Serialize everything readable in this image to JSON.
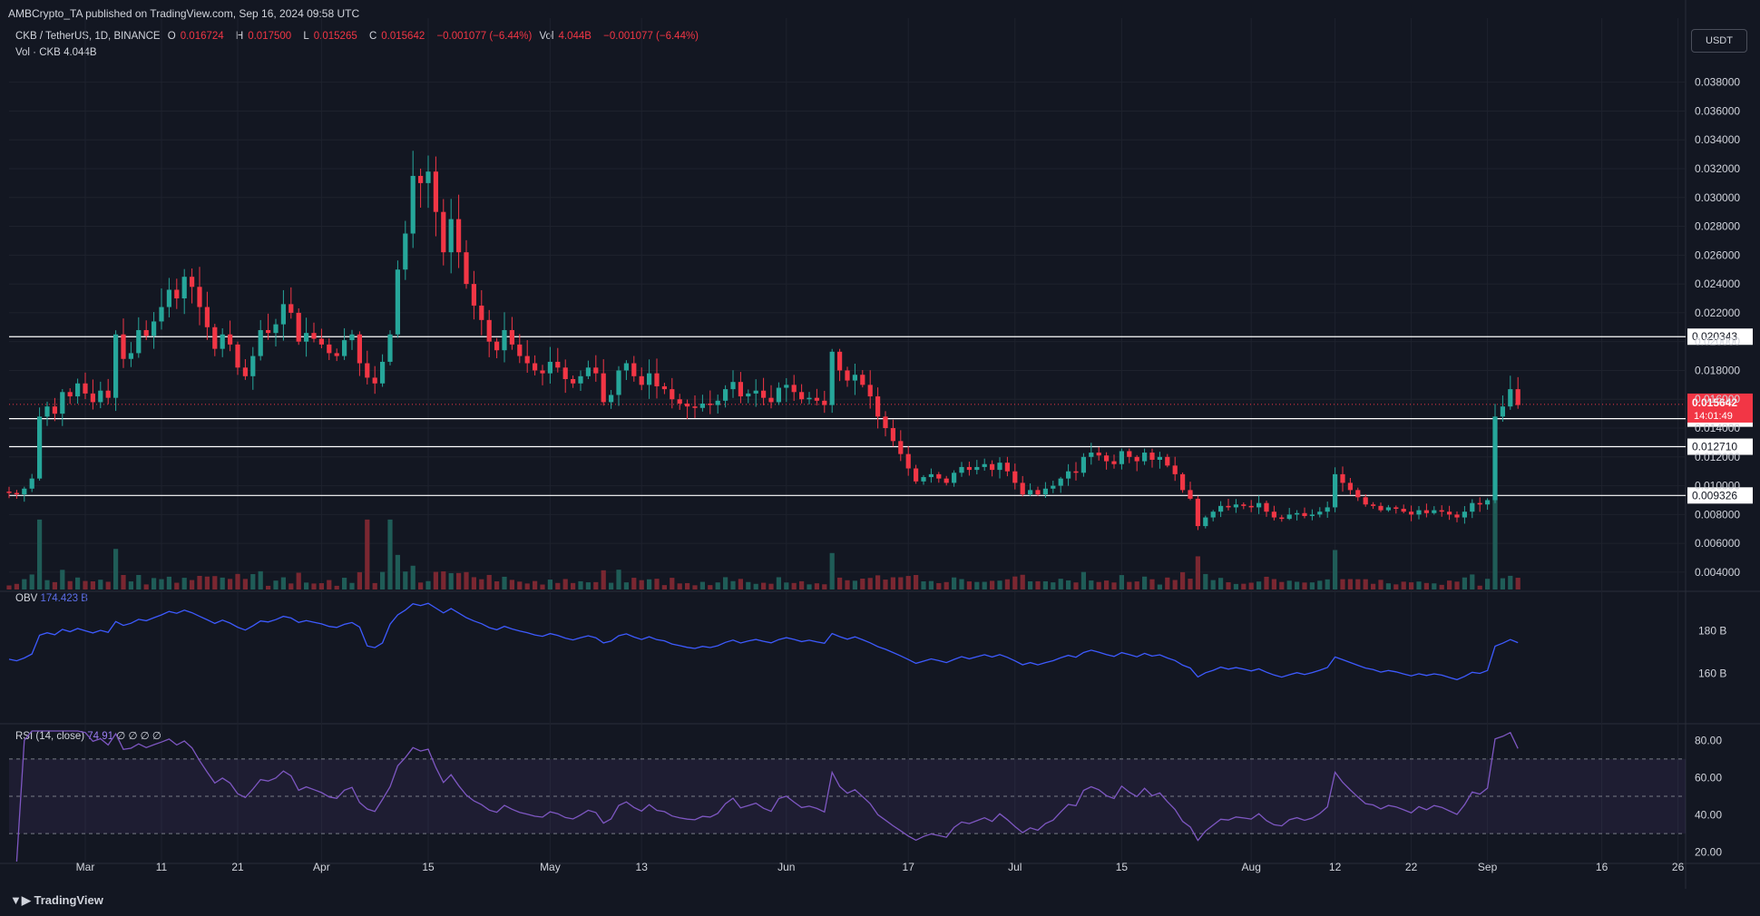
{
  "publisher": "AMBCrypto_TA published on TradingView.com, Sep 16, 2024 09:58 UTC",
  "legend": {
    "symbol": "CKB / TetherUS, 1D, BINANCE",
    "o_label": "O",
    "o": "0.016724",
    "h_label": "H",
    "h": "0.017500",
    "l_label": "L",
    "l": "0.015265",
    "c_label": "C",
    "c": "0.015642",
    "change": "−0.001077 (−6.44%)",
    "vol_label": "Vol",
    "vol": "4.044B",
    "vol_change": "−0.001077 (−6.44%)"
  },
  "vol_legend": {
    "label": "Vol · CKB",
    "value": "4.044B"
  },
  "currency": "USDT",
  "obv_legend": {
    "label": "OBV",
    "value": "174.423 B"
  },
  "rsi_legend": {
    "label": "RSI (14, close)",
    "value": "74.91",
    "extra": "∅ ∅ ∅ ∅"
  },
  "brand": "TradingView",
  "colors": {
    "up": "#26a69a",
    "down": "#f23645",
    "bg": "#131722",
    "obv": "#3d5afe",
    "rsi": "#7e57c2",
    "text": "#d1d4dc"
  },
  "chart_data": [
    {
      "type": "candlestick",
      "title": "CKB / TetherUS, 1D, BINANCE",
      "y_ticks": [
        "0.038000",
        "0.036000",
        "0.034000",
        "0.032000",
        "0.030000",
        "0.028000",
        "0.026000",
        "0.024000",
        "0.022000",
        "0.020000",
        "0.018000",
        "0.016000",
        "0.014000",
        "0.012000",
        "0.010000",
        "0.008000",
        "0.006000",
        "0.004000"
      ],
      "ylim": [
        0.0028,
        0.0393
      ],
      "x_ticks": [
        {
          "label": "Mar",
          "date": "2024-03-01"
        },
        {
          "label": "11",
          "date": "2024-03-11"
        },
        {
          "label": "21",
          "date": "2024-03-21"
        },
        {
          "label": "Apr",
          "date": "2024-04-01"
        },
        {
          "label": "15",
          "date": "2024-04-15"
        },
        {
          "label": "May",
          "date": "2024-05-01"
        },
        {
          "label": "13",
          "date": "2024-05-13"
        },
        {
          "label": "Jun",
          "date": "2024-06-01"
        },
        {
          "label": "17",
          "date": "2024-06-17"
        },
        {
          "label": "Jul",
          "date": "2024-07-01"
        },
        {
          "label": "15",
          "date": "2024-07-15"
        },
        {
          "label": "Aug",
          "date": "2024-08-01"
        },
        {
          "label": "12",
          "date": "2024-08-12"
        },
        {
          "label": "22",
          "date": "2024-08-22"
        },
        {
          "label": "Sep",
          "date": "2024-09-01"
        },
        {
          "label": "16",
          "date": "2024-09-16"
        },
        {
          "label": "26",
          "date": "2024-09-26"
        }
      ],
      "xlim": [
        "2024-02-20",
        "2024-09-27"
      ],
      "horizontal_levels": [
        0.020343,
        0.014654,
        0.01271,
        0.009326
      ],
      "level_labels": [
        "0.020343",
        "0.014654",
        "0.012710",
        "0.009326"
      ],
      "last_price_label": {
        "price": "0.015642",
        "countdown": "14:01:49"
      },
      "closes_start": "2024-02-20",
      "closes": [
        0.0095,
        0.0094,
        0.0098,
        0.0105,
        0.0148,
        0.0155,
        0.015,
        0.0165,
        0.0162,
        0.0171,
        0.0164,
        0.0158,
        0.0166,
        0.0161,
        0.0205,
        0.0188,
        0.0192,
        0.0208,
        0.0204,
        0.0214,
        0.0224,
        0.0236,
        0.023,
        0.0245,
        0.0238,
        0.0224,
        0.021,
        0.0195,
        0.0205,
        0.0198,
        0.0182,
        0.0176,
        0.019,
        0.0208,
        0.0206,
        0.0212,
        0.0226,
        0.022,
        0.02,
        0.0206,
        0.0202,
        0.0198,
        0.0192,
        0.019,
        0.0201,
        0.0205,
        0.0185,
        0.0175,
        0.0171,
        0.0186,
        0.0205,
        0.025,
        0.0275,
        0.0315,
        0.031,
        0.0318,
        0.029,
        0.0262,
        0.0285,
        0.0262,
        0.024,
        0.0225,
        0.0215,
        0.02,
        0.0194,
        0.0208,
        0.0198,
        0.019,
        0.0185,
        0.018,
        0.0178,
        0.0186,
        0.0182,
        0.0174,
        0.0171,
        0.0176,
        0.0182,
        0.0178,
        0.0158,
        0.0163,
        0.018,
        0.0185,
        0.0176,
        0.017,
        0.0178,
        0.0169,
        0.0167,
        0.016,
        0.0157,
        0.0155,
        0.0154,
        0.0157,
        0.0156,
        0.0159,
        0.0167,
        0.0172,
        0.0162,
        0.0164,
        0.0166,
        0.0161,
        0.0158,
        0.0168,
        0.017,
        0.0165,
        0.016,
        0.0161,
        0.0159,
        0.0156,
        0.0193,
        0.018,
        0.0173,
        0.0177,
        0.017,
        0.0162,
        0.0148,
        0.014,
        0.0131,
        0.0122,
        0.0112,
        0.0103,
        0.0106,
        0.0108,
        0.0105,
        0.0102,
        0.0109,
        0.0113,
        0.0111,
        0.0113,
        0.0115,
        0.0111,
        0.0116,
        0.011,
        0.0102,
        0.0094,
        0.0097,
        0.0094,
        0.0098,
        0.01,
        0.0105,
        0.011,
        0.0109,
        0.012,
        0.0123,
        0.0121,
        0.0117,
        0.0115,
        0.0124,
        0.012,
        0.0117,
        0.0123,
        0.0118,
        0.012,
        0.0114,
        0.0108,
        0.0097,
        0.0091,
        0.0072,
        0.0078,
        0.0082,
        0.0086,
        0.0085,
        0.0087,
        0.0086,
        0.0085,
        0.0088,
        0.0082,
        0.0078,
        0.0077,
        0.008,
        0.0081,
        0.0079,
        0.008,
        0.0082,
        0.0085,
        0.0108,
        0.0102,
        0.0097,
        0.0092,
        0.0087,
        0.0086,
        0.0083,
        0.0085,
        0.0084,
        0.0082,
        0.008,
        0.0083,
        0.0081,
        0.0083,
        0.0082,
        0.008,
        0.0078,
        0.0082,
        0.0088,
        0.0087,
        0.009,
        0.0148,
        0.0155,
        0.0167,
        0.0156
      ]
    },
    {
      "type": "bar",
      "title": "Vol · CKB",
      "series_name": "Volume",
      "last_value": "4.044B",
      "spikes": [
        {
          "date": "2024-02-24",
          "level": "high"
        },
        {
          "date": "2024-04-07",
          "level": "high"
        },
        {
          "date": "2024-04-10",
          "level": "high"
        },
        {
          "date": "2024-09-13",
          "level": "peak"
        }
      ]
    },
    {
      "type": "line",
      "title": "OBV",
      "last_value": "174.423 B",
      "y_ticks": [
        "180 B",
        "160 B"
      ],
      "ylim": [
        140,
        195
      ],
      "unit": "B"
    },
    {
      "type": "line",
      "title": "RSI (14, close)",
      "last_value": "74.91",
      "y_ticks": [
        "80.00",
        "60.00",
        "40.00",
        "20.00"
      ],
      "ylim": [
        15,
        85
      ],
      "band": [
        30,
        70
      ],
      "midline": 50
    }
  ]
}
